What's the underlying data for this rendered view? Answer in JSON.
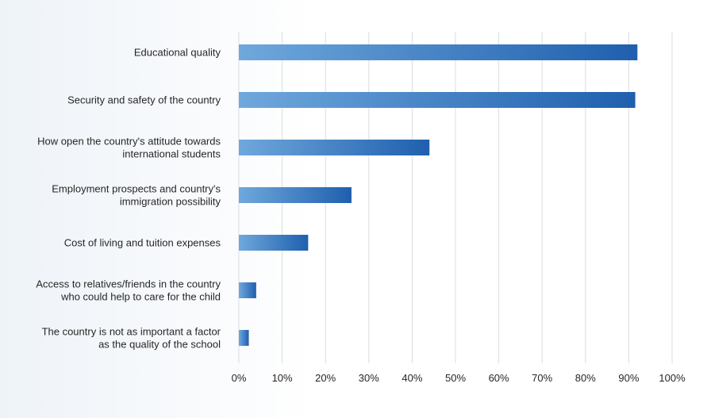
{
  "chart_data": {
    "type": "bar",
    "orientation": "horizontal",
    "categories": [
      "Educational quality",
      "Security and safety of the country",
      "How open the country's attitude towards international students",
      "Employment prospects and country's immigration possibility",
      "Cost of living and tuition expenses",
      "Access to relatives/friends in the country who could help to care for the child",
      "The country is not as important a factor as the quality of the school"
    ],
    "category_lines": [
      [
        "Educational quality"
      ],
      [
        "Security and safety of the country"
      ],
      [
        "How open the country's attitude towards",
        "international students"
      ],
      [
        "Employment prospects and country's",
        "immigration possibility"
      ],
      [
        "Cost of living and tuition expenses"
      ],
      [
        "Access to relatives/friends in the country",
        "who could help to care for the child"
      ],
      [
        "The country is not as important a factor",
        "as the quality of the school"
      ]
    ],
    "values": [
      92,
      91.5,
      44,
      26,
      16,
      4,
      2.3
    ],
    "xlim": [
      0,
      100
    ],
    "xticks": [
      0,
      10,
      20,
      30,
      40,
      50,
      60,
      70,
      80,
      90,
      100
    ],
    "xtick_labels": [
      "0%",
      "10%",
      "20%",
      "30%",
      "40%",
      "50%",
      "60%",
      "70%",
      "80%",
      "90%",
      "100%"
    ],
    "grid": "vertical",
    "title": "",
    "xlabel": "",
    "ylabel": "",
    "colors": {
      "bar_start": "#6fa8dc",
      "bar_end": "#1f5fae",
      "grid": "#d9dde3",
      "text": "#262626"
    }
  }
}
